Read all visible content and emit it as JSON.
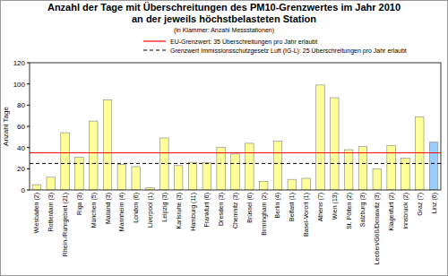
{
  "chart_data": {
    "type": "bar",
    "title": "Anzahl der Tage mit Überschreitungen des PM10-Grenzwertes im Jahr 2010",
    "subtitle": "an der jeweils höchstbelasteten Station",
    "annotations": [
      "(in Klammer: Anzahl Messstationen)"
    ],
    "y_label": "Anzahl Tage",
    "categories": [
      "Wiesbaden (2)",
      "Rotterdam (3)",
      "Rhein-/Ruhrgebiet (21)",
      "Riga (3)",
      "München (5)",
      "Mailand (3)",
      "Mannheim (4)",
      "London (6)",
      "Liverpool (1)",
      "Leipzig (3)",
      "Karlsruhe (3)",
      "Hamburg (11)",
      "Frankfurt (6)",
      "Dresden (3)",
      "Chemnitz (3)",
      "Brüssel (6)",
      "Birmingham (2)",
      "Berlin (4)",
      "Belfast (1)",
      "Basel-Vorort (1)",
      "Athens (7)",
      "Wien (13)",
      "St. Pölten (2)",
      "Salzburg (3)",
      "Leoben/Göß/Donawitz (3)",
      "Klagenfurt (2)",
      "Innsbruck (2)",
      "Graz (7)",
      "Linz (6)"
    ],
    "values": [
      5,
      12,
      54,
      31,
      65,
      85,
      24,
      22,
      2,
      49,
      23,
      26,
      26,
      40,
      34,
      44,
      8,
      46,
      10,
      11,
      99,
      87,
      38,
      41,
      20,
      42,
      30,
      69,
      45
    ],
    "colors": [
      "#ffff99",
      "#ffff99",
      "#ffff99",
      "#ffff99",
      "#ffff99",
      "#ffff99",
      "#ffff99",
      "#ffff99",
      "#ffff99",
      "#ffff99",
      "#ffff99",
      "#ffff99",
      "#ffff99",
      "#ffff99",
      "#ffff99",
      "#ffff99",
      "#ffff99",
      "#ffff99",
      "#ffff99",
      "#ffff99",
      "#ffff99",
      "#ffff99",
      "#ffff99",
      "#ffff99",
      "#ffff99",
      "#ffff99",
      "#ffff99",
      "#ffff99",
      "#99ccff"
    ],
    "lines": [
      {
        "name": "EU-Grenzwert: 35 Überschreitungen pro Jahr erlaubt",
        "value": 35,
        "color": "#ff0000",
        "line_style": "solid"
      },
      {
        "name": "Grenzwert Immissionsschutzgesetz Luft (IG-L): 25 Überschreitungen pro Jahr erlaubt",
        "value": 25,
        "color": "#000000",
        "line_style": "dashed"
      }
    ],
    "ylim": [
      0,
      120
    ],
    "yticks": [
      0,
      20,
      40,
      60,
      80,
      100,
      120
    ],
    "grid": false
  }
}
